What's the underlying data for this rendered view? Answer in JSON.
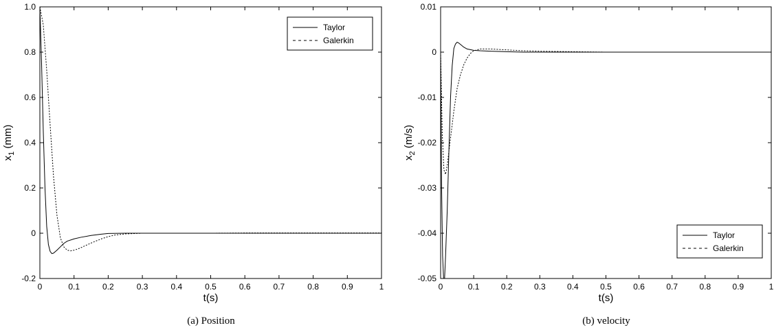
{
  "chart_data": [
    {
      "type": "line",
      "caption": "(a)  Position",
      "xlabel": "t(s)",
      "ylabel": {
        "base": "x",
        "sub": "1",
        "rest": " (mm)"
      },
      "xlim": [
        0,
        1
      ],
      "ylim": [
        -0.2,
        1.0
      ],
      "xticks": [
        0,
        0.1,
        0.2,
        0.3,
        0.4,
        0.5,
        0.6,
        0.7,
        0.8,
        0.9,
        1
      ],
      "xtick_labels": [
        "0",
        "0.1",
        "0.2",
        "0.3",
        "0.4",
        "0.5",
        "0.6",
        "0.7",
        "0.8",
        "0.9",
        "1"
      ],
      "yticks": [
        -0.2,
        0,
        0.2,
        0.4,
        0.6,
        0.8,
        1.0
      ],
      "ytick_labels": [
        "-0.2",
        "0",
        "0.2",
        "0.4",
        "0.6",
        "0.8",
        "1.0"
      ],
      "grid": false,
      "legend_position": "top-right",
      "series": [
        {
          "name": "Taylor",
          "style": "solid",
          "x": [
            0,
            0.005,
            0.01,
            0.015,
            0.02,
            0.025,
            0.03,
            0.035,
            0.04,
            0.05,
            0.06,
            0.07,
            0.08,
            0.1,
            0.12,
            0.15,
            0.18,
            0.2,
            0.25,
            0.3,
            0.4,
            0.5,
            0.6,
            0.7,
            0.8,
            0.9,
            1.0
          ],
          "y": [
            1.0,
            0.75,
            0.45,
            0.2,
            0.03,
            -0.05,
            -0.08,
            -0.09,
            -0.088,
            -0.075,
            -0.06,
            -0.045,
            -0.035,
            -0.025,
            -0.018,
            -0.01,
            -0.004,
            -0.001,
            0,
            0,
            0,
            0,
            0,
            0,
            0,
            0,
            0
          ]
        },
        {
          "name": "Galerkin",
          "style": "dashed",
          "x": [
            0,
            0.01,
            0.02,
            0.03,
            0.04,
            0.05,
            0.06,
            0.07,
            0.08,
            0.09,
            0.1,
            0.11,
            0.12,
            0.14,
            0.16,
            0.18,
            0.2,
            0.22,
            0.25,
            0.3,
            0.35,
            0.4,
            0.5,
            0.6,
            0.7,
            0.8,
            0.9,
            1.0
          ],
          "y": [
            1.0,
            0.92,
            0.72,
            0.48,
            0.25,
            0.08,
            -0.02,
            -0.06,
            -0.075,
            -0.078,
            -0.075,
            -0.07,
            -0.064,
            -0.05,
            -0.037,
            -0.025,
            -0.015,
            -0.008,
            -0.003,
            0,
            0,
            0,
            0,
            0.001,
            0.001,
            0.001,
            0.001,
            0.001
          ]
        }
      ]
    },
    {
      "type": "line",
      "caption": "(b)  velocity",
      "xlabel": "t(s)",
      "ylabel": {
        "base": "x",
        "sub": "2",
        "rest": " (m/s)"
      },
      "xlim": [
        0,
        1
      ],
      "ylim": [
        -0.05,
        0.01
      ],
      "xticks": [
        0,
        0.1,
        0.2,
        0.3,
        0.4,
        0.5,
        0.6,
        0.7,
        0.8,
        0.9,
        1
      ],
      "xtick_labels": [
        "0",
        "0.1",
        "0.2",
        "0.3",
        "0.4",
        "0.5",
        "0.6",
        "0.7",
        "0.8",
        "0.9",
        "1"
      ],
      "yticks": [
        -0.05,
        -0.04,
        -0.03,
        -0.02,
        -0.01,
        0,
        0.01
      ],
      "ytick_labels": [
        "-0.05",
        "-0.04",
        "-0.03",
        "-0.02",
        "-0.01",
        "0",
        "0.01"
      ],
      "grid": false,
      "legend_position": "bottom-right",
      "series": [
        {
          "name": "Taylor",
          "style": "solid",
          "x": [
            0,
            0.003,
            0.006,
            0.009,
            0.012,
            0.015,
            0.02,
            0.025,
            0.03,
            0.035,
            0.04,
            0.045,
            0.05,
            0.055,
            0.06,
            0.07,
            0.08,
            0.1,
            0.12,
            0.15,
            0.2,
            0.25,
            0.3,
            0.4,
            0.5,
            0.6,
            0.7,
            0.8,
            0.9,
            1.0
          ],
          "y": [
            0,
            -0.03,
            -0.045,
            -0.05,
            -0.05,
            -0.045,
            -0.035,
            -0.022,
            -0.01,
            -0.003,
            0.0008,
            0.0018,
            0.0022,
            0.002,
            0.0017,
            0.0011,
            0.0007,
            0.0004,
            0.0003,
            0.0002,
            0.0001,
            0,
            0,
            0,
            0,
            0,
            0,
            0,
            0,
            0
          ]
        },
        {
          "name": "Galerkin",
          "style": "dashed",
          "x": [
            0,
            0.005,
            0.01,
            0.015,
            0.02,
            0.025,
            0.03,
            0.04,
            0.05,
            0.06,
            0.07,
            0.08,
            0.09,
            0.1,
            0.12,
            0.15,
            0.2,
            0.25,
            0.3,
            0.4,
            0.5,
            0.6,
            0.7,
            0.8,
            0.9,
            1.0
          ],
          "y": [
            0,
            -0.018,
            -0.026,
            -0.027,
            -0.025,
            -0.022,
            -0.019,
            -0.013,
            -0.008,
            -0.005,
            -0.0028,
            -0.0013,
            -0.0003,
            0.0003,
            0.0007,
            0.0007,
            0.0005,
            0.0003,
            0.0002,
            0.0001,
            0,
            0,
            0,
            0,
            0,
            0
          ]
        }
      ]
    }
  ]
}
